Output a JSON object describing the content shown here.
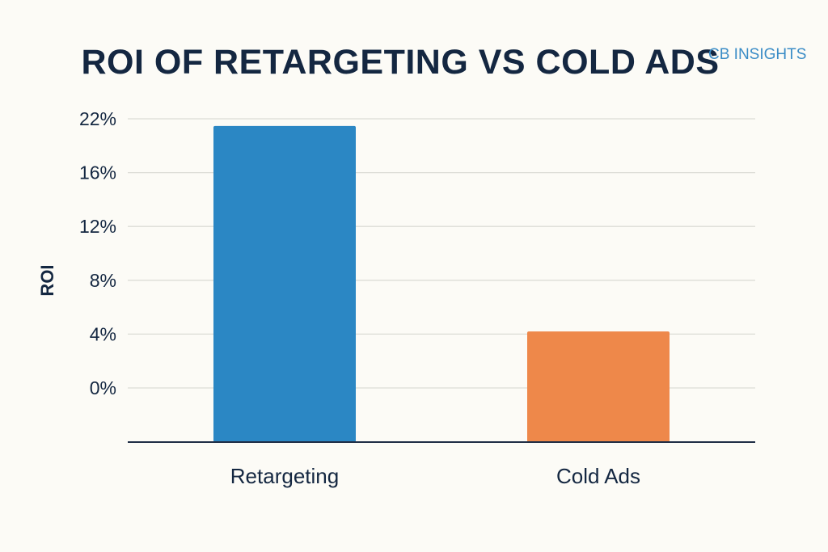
{
  "brand": {
    "label": "CB INSIGHTS",
    "color": "#3a8cc6"
  },
  "colors": {
    "text": "#142741",
    "grid": "#dcdcd6",
    "axis": "#1f2d45",
    "background": "#fcfbf6"
  },
  "chart_data": {
    "type": "bar",
    "title": "ROI OF RETARGETING VS COLD ADS",
    "xlabel": "",
    "ylabel": "ROI",
    "categories": [
      "Retargeting",
      "Cold Ads"
    ],
    "values": [
      21.2,
      4.2
    ],
    "bar_colors": [
      "#2b87c4",
      "#ee884a"
    ],
    "y_ticks": [
      0,
      4,
      8,
      12,
      16,
      22
    ],
    "y_tick_labels": [
      "0%",
      "4%",
      "8%",
      "12%",
      "16%",
      "22%"
    ],
    "grid": true,
    "legend": "none"
  }
}
